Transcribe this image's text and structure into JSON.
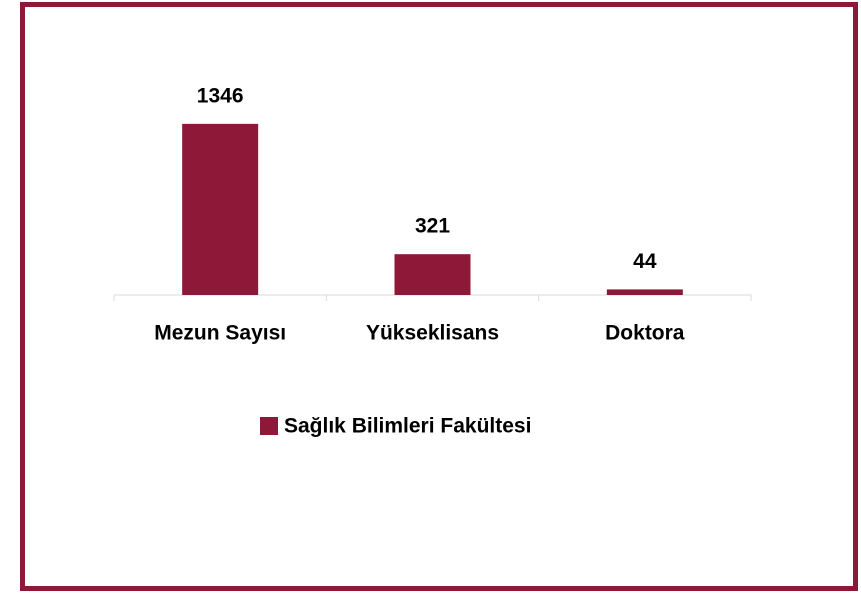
{
  "chart_data": {
    "type": "bar",
    "categories": [
      "Mezun Sayısı",
      "Yükseklisans",
      "Doktora"
    ],
    "series": [
      {
        "name": "Sağlık Bilimleri Fakültesi",
        "color": "#8e1838",
        "values": [
          1346,
          321,
          44
        ]
      }
    ],
    "ylim": [
      0,
      1400
    ],
    "legend": "bottom"
  }
}
